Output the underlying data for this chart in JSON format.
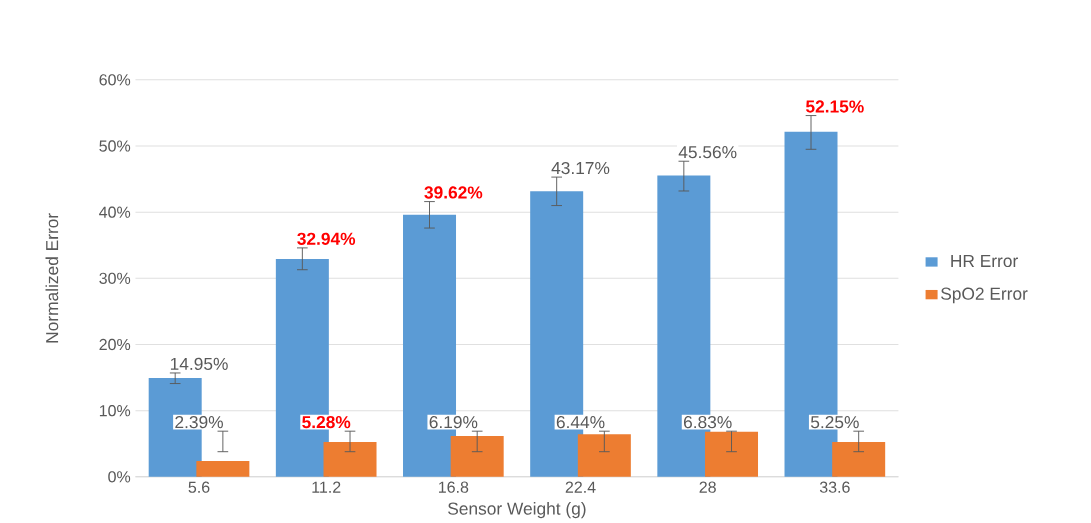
{
  "chart_data": {
    "type": "bar",
    "xlabel": "Sensor Weight (g)",
    "ylabel": "Normalized Error",
    "categories": [
      "5.6",
      "11.2",
      "16.8",
      "22.4",
      "28",
      "33.6"
    ],
    "series": [
      {
        "name": "HR Error",
        "color": "#5b9bd5",
        "values": [
          14.95,
          32.94,
          39.62,
          43.17,
          45.56,
          52.15
        ],
        "errors": [
          [
            14.1,
            15.7
          ],
          [
            31.3,
            34.6
          ],
          [
            37.6,
            41.6
          ],
          [
            41.0,
            45.3
          ],
          [
            43.2,
            47.7
          ],
          [
            49.5,
            54.6
          ]
        ],
        "value_labels": [
          "14.95%",
          "**32.94%**",
          "**39.62%**",
          "43.17%",
          "45.56%",
          "**52.15%**"
        ]
      },
      {
        "name": "SpO2 Error",
        "color": "#ed7d31",
        "values": [
          2.39,
          5.28,
          6.19,
          6.44,
          6.83,
          5.25
        ],
        "errors": [
          [
            3.8,
            6.9
          ],
          [
            3.8,
            6.9
          ],
          [
            3.8,
            6.9
          ],
          [
            3.8,
            6.9
          ],
          [
            3.8,
            6.9
          ],
          [
            3.8,
            6.9
          ]
        ],
        "value_labels": [
          "2.39%",
          "**5.28%**",
          "6.19%",
          "6.44%",
          "6.83%",
          "5.25%"
        ]
      }
    ],
    "ylim": [
      0,
      60
    ],
    "yticks": [
      {
        "value": 0,
        "label": "0%"
      },
      {
        "value": 10,
        "label": "10%"
      },
      {
        "value": 20,
        "label": "20%"
      },
      {
        "value": 30,
        "label": "30%"
      },
      {
        "value": 40,
        "label": "40%"
      },
      {
        "value": 50,
        "label": "50%"
      },
      {
        "value": 60,
        "label": "60%"
      }
    ],
    "grid": "y",
    "legend": "right"
  }
}
